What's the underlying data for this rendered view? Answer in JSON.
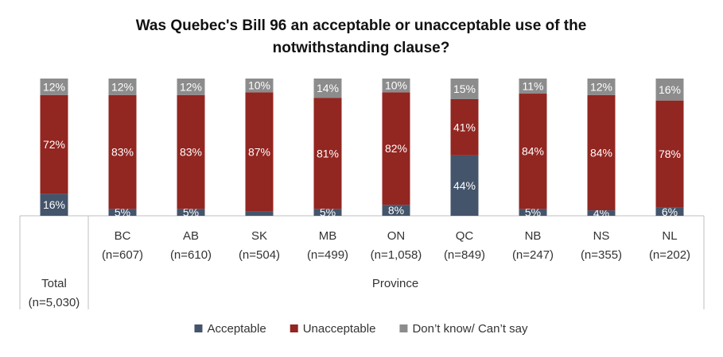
{
  "chart_data": {
    "type": "bar",
    "stacked": true,
    "title_lines": [
      "Was Quebec's Bill 96 an acceptable or unacceptable use of the",
      "notwithstanding clause?"
    ],
    "categories": [
      [
        "Total",
        "(n=5,030)"
      ],
      [
        "BC",
        "(n=607)"
      ],
      [
        "AB",
        "(n=610)"
      ],
      [
        "SK",
        "(n=504)"
      ],
      [
        "MB",
        "(n=499)"
      ],
      [
        "ON",
        "(n=1,058)"
      ],
      [
        "QC",
        "(n=849)"
      ],
      [
        "NB",
        "(n=247)"
      ],
      [
        "NS",
        "(n=355)"
      ],
      [
        "NL",
        "(n=202)"
      ]
    ],
    "group_label": "Province",
    "series": [
      {
        "name": "Acceptable",
        "color": "#44546a",
        "values": [
          16,
          5,
          5,
          3,
          5,
          8,
          44,
          5,
          4,
          6
        ],
        "labels": [
          "16%",
          "5%",
          "5%",
          "",
          "5%",
          "8%",
          "44%",
          "5%",
          "4%",
          "6%"
        ]
      },
      {
        "name": "Unacceptable",
        "color": "#922621",
        "values": [
          72,
          83,
          83,
          87,
          81,
          82,
          41,
          84,
          84,
          78
        ],
        "labels": [
          "72%",
          "83%",
          "83%",
          "87%",
          "81%",
          "82%",
          "41%",
          "84%",
          "84%",
          "78%"
        ]
      },
      {
        "name": "Don’t know/ Can’t say",
        "color": "#8c8c8c",
        "values": [
          12,
          12,
          12,
          10,
          14,
          10,
          15,
          11,
          12,
          16
        ],
        "labels": [
          "12%",
          "12%",
          "12%",
          "10%",
          "14%",
          "10%",
          "15%",
          "11%",
          "12%",
          "16%"
        ]
      }
    ],
    "ylim": [
      0,
      100
    ],
    "legend_position": "bottom",
    "grid": false
  }
}
